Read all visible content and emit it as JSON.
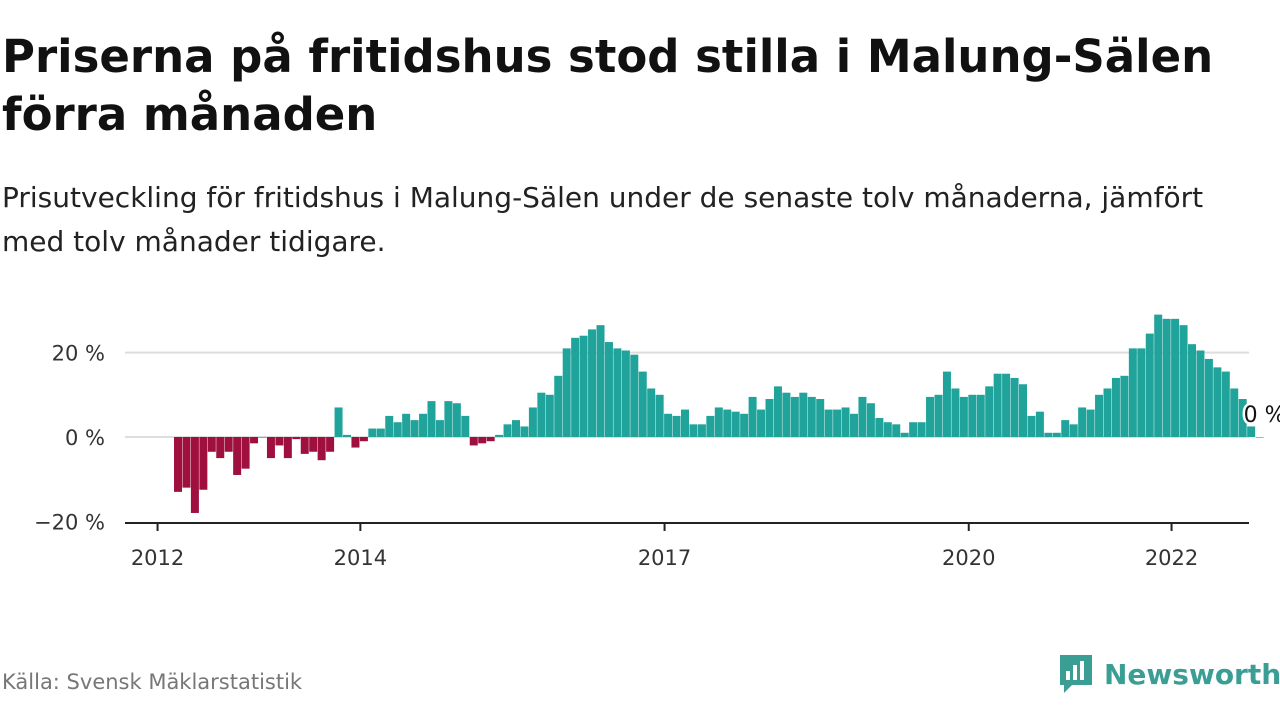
{
  "header": {
    "title": "Priserna på fritidshus stod stilla i Malung-Sälen förra månaden",
    "subtitle": "Prisutveckling för fritidshus i Malung-Sälen under de senaste tolv månaderna, jämfört med tolv månader tidigare."
  },
  "footer": {
    "source": "Källa: Svensk Mäklarstatistik",
    "brand": "Newsworthy",
    "brand_icon": "bar-chart-logo-icon"
  },
  "colors": {
    "positive": "#1fa39a",
    "negative": "#a0103f",
    "brand": "#3a9e95",
    "grid": "#dddddd",
    "axis": "#222222"
  },
  "chart_data": {
    "type": "bar",
    "x_start": "2012-02",
    "x_end": "2023-04",
    "last_label": "0 %",
    "ylim": [
      -20,
      30
    ],
    "y_ticks": [
      -20,
      0,
      20
    ],
    "y_tick_labels": [
      "−20 %",
      "0 %",
      "20 %"
    ],
    "x_ticks": [
      "2012",
      "2014",
      "2017",
      "2020",
      "2022"
    ],
    "grid": "horizontal",
    "values": [
      -13,
      -12,
      -18,
      -12.5,
      -3.5,
      -5,
      -3.5,
      -9,
      -7.5,
      -1.5,
      0,
      -5,
      -2,
      -5,
      -0.5,
      -4,
      -3.5,
      -5.5,
      -3.5,
      7,
      0.5,
      -2.5,
      -1,
      2,
      2,
      5,
      3.5,
      5.5,
      4,
      5.5,
      8.5,
      4,
      8.5,
      8,
      5,
      -2,
      -1.5,
      -1,
      0.5,
      3,
      4,
      2.5,
      7,
      10.5,
      10,
      14.5,
      21,
      23.5,
      24,
      25.5,
      26.5,
      22.5,
      21,
      20.5,
      19.5,
      15.5,
      11.5,
      10,
      5.5,
      5,
      6.5,
      3,
      3,
      5,
      7,
      6.5,
      6,
      5.5,
      9.5,
      6.5,
      9,
      12,
      10.5,
      9.5,
      10.5,
      9.5,
      9,
      6.5,
      6.5,
      7,
      5.5,
      9.5,
      8,
      4.5,
      3.5,
      3,
      1,
      3.5,
      3.5,
      9.5,
      10,
      15.5,
      11.5,
      9.5,
      10,
      10,
      12,
      15,
      15,
      14,
      12.5,
      5,
      6,
      1,
      1,
      4,
      3,
      7,
      6.5,
      10,
      11.5,
      14,
      14.5,
      21,
      21,
      24.5,
      29,
      28,
      28,
      26.5,
      22,
      20.5,
      18.5,
      16.5,
      15.5,
      11.5,
      9,
      2.5,
      0
    ]
  }
}
